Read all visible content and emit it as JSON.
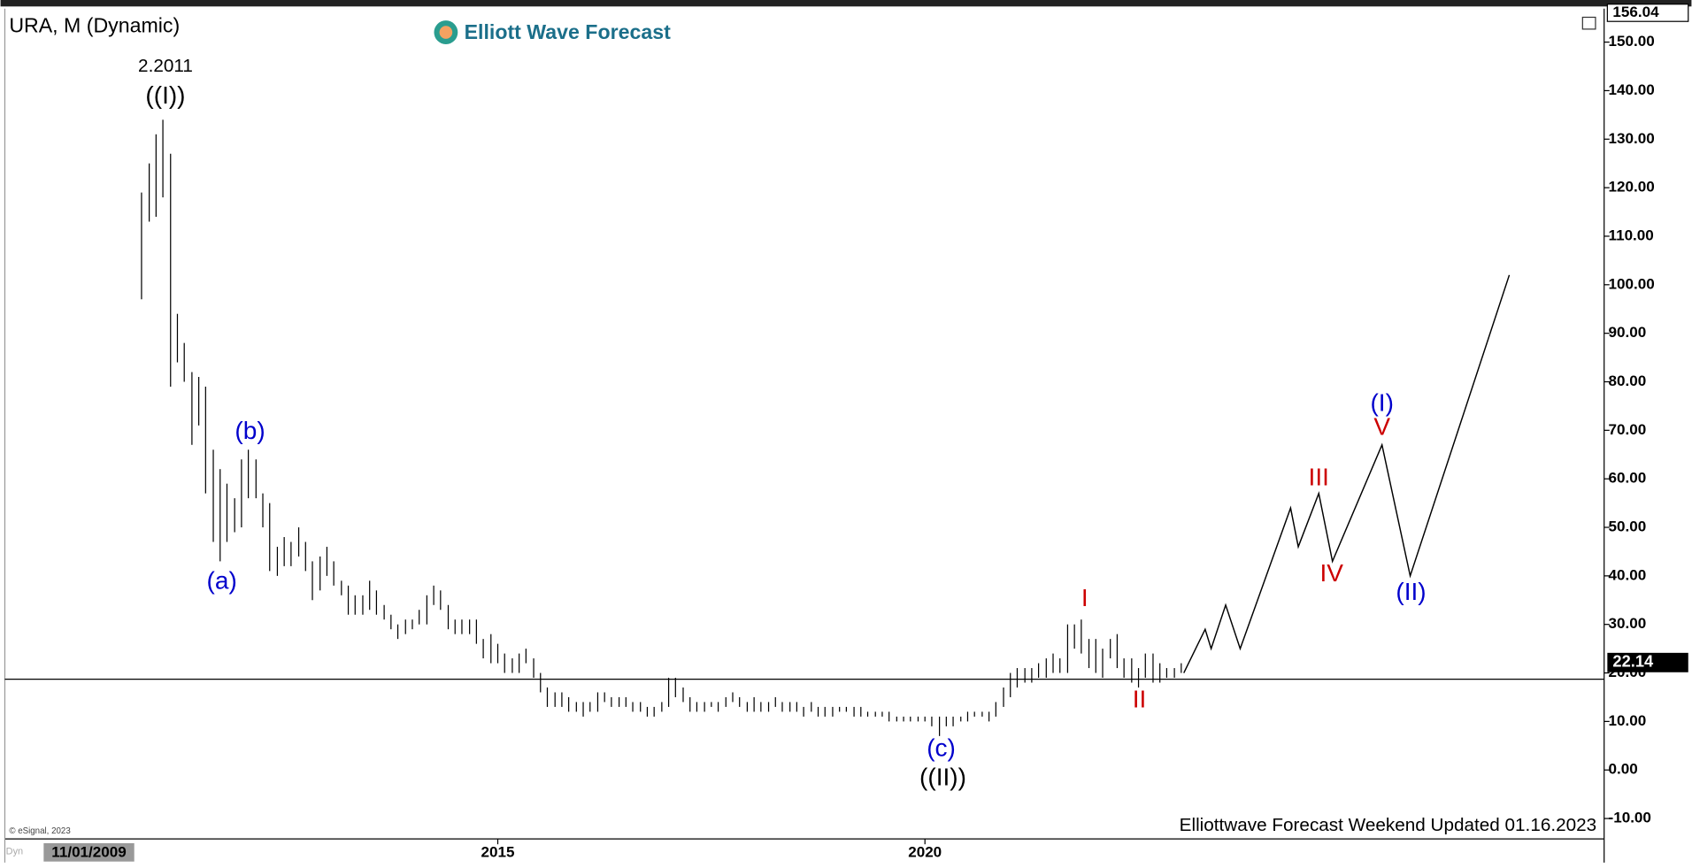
{
  "chart_data": {
    "type": "range-bar",
    "title": "URA, M (Dynamic)",
    "logo": "Elliott Wave Forecast",
    "footer": "Elliottwave Forecast Weekend Updated 01.16.2023",
    "copyright": "© eSignal, 2023",
    "mode_label": "Dyn",
    "cursor_date": "11/01/2009",
    "color": "#000000",
    "x": [
      2010.83,
      2010.92,
      2011.0,
      2011.08,
      2011.17,
      2011.25,
      2011.33,
      2011.42,
      2011.5,
      2011.58,
      2011.67,
      2011.75,
      2011.83,
      2011.92,
      2012.0,
      2012.08,
      2012.17,
      2012.25,
      2012.33,
      2012.42,
      2012.5,
      2012.58,
      2012.67,
      2012.75,
      2012.83,
      2012.92,
      2013.0,
      2013.08,
      2013.17,
      2013.25,
      2013.33,
      2013.42,
      2013.5,
      2013.58,
      2013.67,
      2013.75,
      2013.83,
      2013.92,
      2014.0,
      2014.08,
      2014.17,
      2014.25,
      2014.33,
      2014.42,
      2014.5,
      2014.58,
      2014.67,
      2014.75,
      2014.83,
      2014.92,
      2015.0,
      2015.08,
      2015.17,
      2015.25,
      2015.33,
      2015.42,
      2015.5,
      2015.58,
      2015.67,
      2015.75,
      2015.83,
      2015.92,
      2016.0,
      2016.08,
      2016.17,
      2016.25,
      2016.33,
      2016.42,
      2016.5,
      2016.58,
      2016.67,
      2016.75,
      2016.83,
      2016.92,
      2017.0,
      2017.08,
      2017.17,
      2017.25,
      2017.33,
      2017.42,
      2017.5,
      2017.58,
      2017.67,
      2017.75,
      2017.83,
      2017.92,
      2018.0,
      2018.08,
      2018.17,
      2018.25,
      2018.33,
      2018.42,
      2018.5,
      2018.58,
      2018.67,
      2018.75,
      2018.83,
      2018.92,
      2019.0,
      2019.08,
      2019.17,
      2019.25,
      2019.33,
      2019.42,
      2019.5,
      2019.58,
      2019.67,
      2019.75,
      2019.83,
      2019.92,
      2020.0,
      2020.08,
      2020.17,
      2020.25,
      2020.33,
      2020.42,
      2020.5,
      2020.58,
      2020.67,
      2020.75,
      2020.83,
      2020.92,
      2021.0,
      2021.08,
      2021.17,
      2021.25,
      2021.33,
      2021.42,
      2021.5,
      2021.58,
      2021.67,
      2021.75,
      2021.83,
      2021.92,
      2022.0,
      2022.08,
      2022.17,
      2022.25,
      2022.33,
      2022.42,
      2022.5,
      2022.58,
      2022.67,
      2022.75,
      2022.83,
      2022.92,
      2023.0
    ],
    "high": [
      119,
      125,
      131,
      134,
      127,
      94,
      88,
      82,
      81,
      79,
      66,
      62,
      59,
      56,
      64,
      66,
      64,
      57,
      55,
      46,
      48,
      47,
      50,
      47,
      43,
      44,
      46,
      43,
      39,
      38,
      36,
      36,
      39,
      37,
      34,
      32,
      30,
      31,
      31,
      33,
      36,
      38,
      37,
      34,
      31,
      31,
      31,
      31,
      27,
      28,
      26,
      24,
      23,
      24,
      25,
      23,
      20,
      17,
      16,
      16,
      15,
      14,
      14,
      14,
      16,
      16,
      15,
      15,
      15,
      14,
      14,
      13,
      13,
      14,
      19,
      19,
      17,
      15,
      14,
      14,
      14,
      14,
      15,
      16,
      15,
      14,
      15,
      14,
      14,
      15,
      14,
      14,
      14,
      13,
      14,
      13,
      13,
      13,
      13,
      13,
      13,
      13,
      12,
      12,
      12,
      12,
      11,
      11,
      11,
      11,
      11,
      11,
      11,
      11,
      11,
      11,
      12,
      12,
      12,
      12,
      14,
      17,
      20,
      21,
      21,
      21,
      22,
      23,
      24,
      23,
      30,
      30,
      31,
      27,
      27,
      25,
      27,
      28,
      23,
      23,
      21,
      24,
      24,
      22,
      21,
      21,
      22
    ],
    "low": [
      97,
      113,
      114,
      118,
      79,
      84,
      80,
      67,
      71,
      57,
      47,
      43,
      47,
      49,
      50,
      56,
      56,
      50,
      41,
      40,
      42,
      42,
      44,
      41,
      35,
      37,
      40,
      38,
      36,
      32,
      32,
      32,
      33,
      32,
      31,
      29,
      27,
      28,
      29,
      30,
      30,
      34,
      33,
      29,
      28,
      28,
      28,
      26,
      23,
      22,
      22,
      20,
      20,
      20,
      22,
      19,
      16,
      13,
      13,
      13,
      12,
      12,
      11,
      12,
      12,
      14,
      13,
      13,
      13,
      12,
      12,
      11,
      11,
      12,
      13,
      15,
      14,
      12,
      12,
      12,
      13,
      12,
      13,
      14,
      13,
      12,
      12,
      12,
      12,
      13,
      12,
      12,
      12,
      11,
      12,
      11,
      11,
      11,
      12,
      12,
      11,
      11,
      11,
      11,
      11,
      10,
      10,
      10,
      10,
      10,
      10,
      9,
      7,
      9,
      9,
      10,
      10,
      11,
      11,
      10,
      11,
      13,
      15,
      17,
      18,
      18,
      19,
      19,
      20,
      20,
      20,
      25,
      24,
      21,
      20,
      19,
      23,
      21,
      19,
      18,
      17,
      19,
      18,
      18,
      19,
      19,
      20
    ],
    "projection": {
      "color": "#000000",
      "x": [
        2023.03,
        2023.28,
        2023.35,
        2023.52,
        2023.69,
        2024.28,
        2024.37,
        2024.61,
        2024.77,
        2025.35,
        2025.68,
        2026.84
      ],
      "y": [
        20,
        29,
        25,
        34,
        25,
        54,
        46,
        57,
        43,
        67,
        40,
        102
      ]
    },
    "reference_line": 18.7,
    "last_price": {
      "value": 22.14,
      "label": "22.14"
    },
    "top_price": {
      "value": 156.04,
      "label": "156.04"
    },
    "annotations": [
      {
        "label": "2.2011",
        "x": 2011.11,
        "y": 144.9,
        "color": "#000000"
      },
      {
        "label": "((I))",
        "x": 2011.11,
        "y": 138.7,
        "color": "#000000"
      },
      {
        "label": "(a)",
        "x": 2011.77,
        "y": 38.7,
        "color": "#0000cc"
      },
      {
        "label": "(b)",
        "x": 2012.1,
        "y": 69.6,
        "color": "#0000cc"
      },
      {
        "label": "(c)",
        "x": 2020.19,
        "y": 4.2,
        "color": "#0000cc"
      },
      {
        "label": "((II))",
        "x": 2020.21,
        "y": -1.8,
        "color": "#000000"
      },
      {
        "label": "I",
        "x": 2021.87,
        "y": 35.1,
        "color": "#cc0000"
      },
      {
        "label": "II",
        "x": 2022.51,
        "y": 14.2,
        "color": "#cc0000"
      },
      {
        "label": "III",
        "x": 2024.61,
        "y": 60,
        "color": "#cc0000"
      },
      {
        "label": "IV",
        "x": 2024.76,
        "y": 40.2,
        "color": "#cc0000"
      },
      {
        "label": "V",
        "x": 2025.35,
        "y": 70.4,
        "color": "#cc0000"
      },
      {
        "label": "(I)",
        "x": 2025.35,
        "y": 75.3,
        "color": "#0000cc"
      },
      {
        "label": "(II)",
        "x": 2025.69,
        "y": 36.4,
        "color": "#0000cc"
      }
    ],
    "xlim": [
      2009.23,
      2027.95
    ],
    "xticks": [
      2015,
      2020
    ],
    "ylim": [
      -14.2,
      156.9
    ],
    "yticks": [
      {
        "value": 150,
        "label": "150.00"
      },
      {
        "value": 140,
        "label": "140.00"
      },
      {
        "value": 130,
        "label": "130.00"
      },
      {
        "value": 120,
        "label": "120.00"
      },
      {
        "value": 110,
        "label": "110.00"
      },
      {
        "value": 100,
        "label": "100.00"
      },
      {
        "value": 90,
        "label": "90.00"
      },
      {
        "value": 80,
        "label": "80.00"
      },
      {
        "value": 70,
        "label": "70.00"
      },
      {
        "value": 60,
        "label": "60.00"
      },
      {
        "value": 50,
        "label": "50.00"
      },
      {
        "value": 40,
        "label": "40.00"
      },
      {
        "value": 30,
        "label": "30.00"
      },
      {
        "value": 20,
        "label": "20.00"
      },
      {
        "value": 10,
        "label": "10.00"
      },
      {
        "value": 0,
        "label": "0.00"
      },
      {
        "value": -10,
        "label": "-10.00"
      }
    ]
  }
}
